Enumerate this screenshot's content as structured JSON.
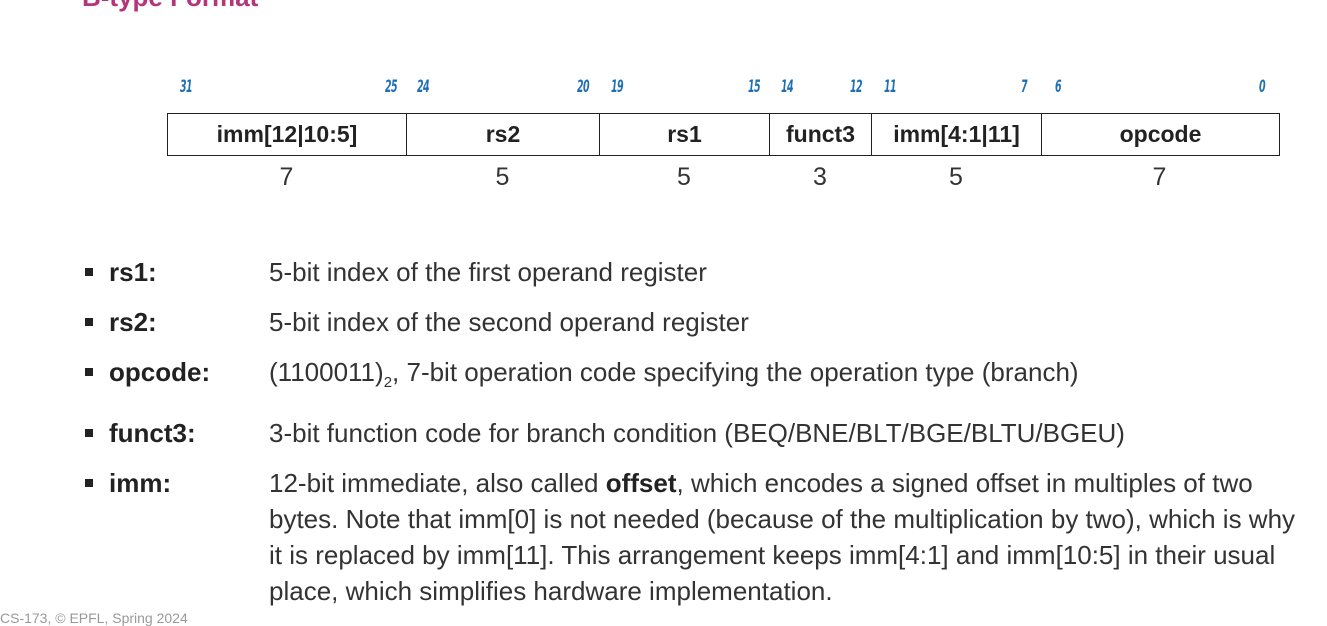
{
  "title": "B-type Format",
  "bit_labels": [
    "31",
    "25",
    "24",
    "20",
    "19",
    "15",
    "14",
    "12",
    "11",
    "7",
    "6",
    "0"
  ],
  "fields": [
    {
      "name": "imm[12|10:5]",
      "width": "7"
    },
    {
      "name": "rs2",
      "width": "5"
    },
    {
      "name": "rs1",
      "width": "5"
    },
    {
      "name": "funct3",
      "width": "3"
    },
    {
      "name": "imm[4:1|11]",
      "width": "5"
    },
    {
      "name": "opcode",
      "width": "7"
    }
  ],
  "descriptions": {
    "rs1": {
      "term": "rs1:",
      "text": "5-bit index of the first operand register"
    },
    "rs2": {
      "term": "rs2:",
      "text": "5-bit index of the second operand register"
    },
    "opcode": {
      "term": "opcode:",
      "value": "(1100011)",
      "subscript": "2",
      "text": ", 7-bit operation code specifying the operation type (branch)"
    },
    "funct3": {
      "term": "funct3:",
      "text": "3-bit function code for branch condition (BEQ/BNE/BLT/BGE/BLTU/BGEU)"
    },
    "imm": {
      "term": "imm:",
      "before": "12-bit immediate, also called ",
      "bold": "offset",
      "after": ", which encodes a signed offset in multiples of two bytes. Note that imm[0] is not needed (because of the multiplication by two), which is why it is replaced by imm[11]. This arrangement keeps imm[4:1] and imm[10:5] in their usual place, which simplifies hardware implementation."
    }
  },
  "footer": "CS-173, © EPFL, Spring 2024"
}
